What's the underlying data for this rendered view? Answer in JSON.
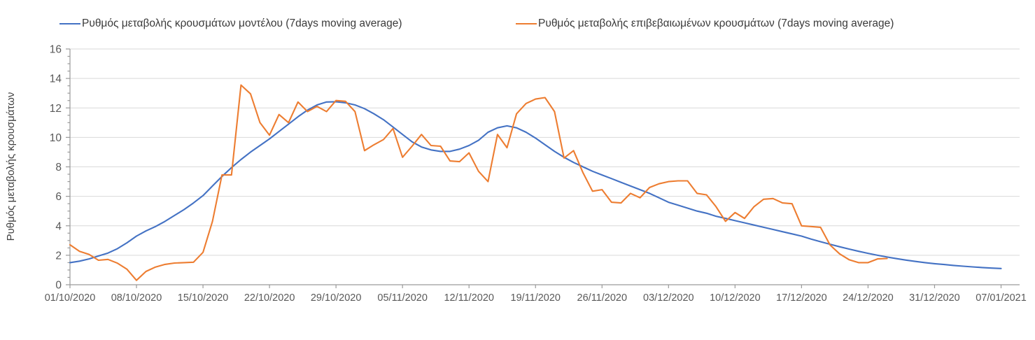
{
  "page": {
    "background": "#ffffff"
  },
  "chart_data": {
    "type": "line",
    "title": "",
    "xlabel": "",
    "ylabel": "Ρυθμός μεταβολής κρουσμάτων",
    "ylim": [
      0,
      16
    ],
    "y_tick_step": 2,
    "y_minor_tick_step": 0.5,
    "y_tick_labels": [
      "0",
      "2",
      "4",
      "6",
      "8",
      "10",
      "12",
      "14",
      "16"
    ],
    "grid": "horizontal-only",
    "legend_position": "top",
    "axis_color": "#9a9a9a",
    "grid_color": "#d9d9d9",
    "tick_label_color": "#595959",
    "x_tick_labels": [
      "01/10/2020",
      "08/10/2020",
      "15/10/2020",
      "22/10/2020",
      "29/10/2020",
      "05/11/2020",
      "12/11/2020",
      "19/11/2020",
      "26/11/2020",
      "03/12/2020",
      "10/12/2020",
      "17/12/2020",
      "24/12/2020",
      "31/12/2020",
      "07/01/2021"
    ],
    "x_days_per_tick": 7,
    "x_range_days": [
      0,
      98
    ],
    "series": [
      {
        "name": "Ρυθμός μεταβολής κρουσμάτων μοντέλου (7days moving average)",
        "color": "#4472C4",
        "start_day": 0,
        "values": [
          1.5,
          1.6,
          1.75,
          1.95,
          2.15,
          2.45,
          2.85,
          3.3,
          3.65,
          3.95,
          4.3,
          4.7,
          5.1,
          5.55,
          6.05,
          6.7,
          7.35,
          7.95,
          8.5,
          9.0,
          9.45,
          9.9,
          10.4,
          10.9,
          11.4,
          11.85,
          12.2,
          12.4,
          12.42,
          12.35,
          12.2,
          11.95,
          11.6,
          11.2,
          10.7,
          10.2,
          9.7,
          9.35,
          9.15,
          9.05,
          9.05,
          9.2,
          9.45,
          9.8,
          10.35,
          10.65,
          10.78,
          10.65,
          10.35,
          9.95,
          9.5,
          9.05,
          8.65,
          8.3,
          8.0,
          7.7,
          7.45,
          7.2,
          6.95,
          6.7,
          6.45,
          6.2,
          5.9,
          5.6,
          5.4,
          5.2,
          5.0,
          4.85,
          4.65,
          4.5,
          4.35,
          4.2,
          4.05,
          3.9,
          3.75,
          3.6,
          3.45,
          3.3,
          3.1,
          2.92,
          2.75,
          2.58,
          2.42,
          2.27,
          2.13,
          2.0,
          1.88,
          1.77,
          1.67,
          1.58,
          1.5,
          1.43,
          1.37,
          1.31,
          1.26,
          1.21,
          1.17,
          1.13,
          1.1
        ]
      },
      {
        "name": "Ρυθμός μεταβολής επιβεβαιωμένων κρουσμάτων (7days moving average)",
        "color": "#ED7D31",
        "start_day": 0,
        "values": [
          2.71,
          2.27,
          2.06,
          1.66,
          1.72,
          1.46,
          1.05,
          0.3,
          0.9,
          1.2,
          1.38,
          1.47,
          1.5,
          1.53,
          2.2,
          4.3,
          7.45,
          7.45,
          13.55,
          12.95,
          11.0,
          10.15,
          11.55,
          11.0,
          12.4,
          11.75,
          12.1,
          11.75,
          12.5,
          12.45,
          11.75,
          9.1,
          9.5,
          9.85,
          10.6,
          8.65,
          9.4,
          10.2,
          9.45,
          9.4,
          8.4,
          8.35,
          8.95,
          7.7,
          7.0,
          10.2,
          9.3,
          11.6,
          12.3,
          12.6,
          12.7,
          11.75,
          8.6,
          9.1,
          7.6,
          6.35,
          6.45,
          5.6,
          5.55,
          6.2,
          5.9,
          6.6,
          6.85,
          7.0,
          7.05,
          7.05,
          6.2,
          6.1,
          5.3,
          4.3,
          4.9,
          4.5,
          5.3,
          5.8,
          5.85,
          5.55,
          5.5,
          4.0,
          3.95,
          3.9,
          2.7,
          2.1,
          1.7,
          1.5,
          1.5,
          1.75,
          1.78
        ]
      }
    ]
  }
}
